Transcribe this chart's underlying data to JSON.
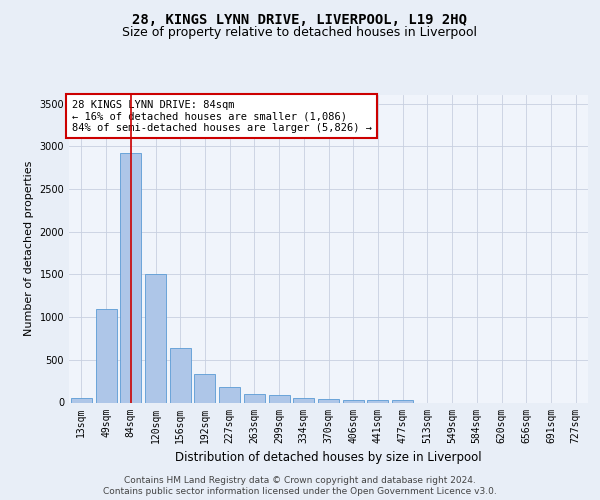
{
  "title": "28, KINGS LYNN DRIVE, LIVERPOOL, L19 2HQ",
  "subtitle": "Size of property relative to detached houses in Liverpool",
  "xlabel": "Distribution of detached houses by size in Liverpool",
  "ylabel": "Number of detached properties",
  "categories": [
    "13sqm",
    "49sqm",
    "84sqm",
    "120sqm",
    "156sqm",
    "192sqm",
    "227sqm",
    "263sqm",
    "299sqm",
    "334sqm",
    "370sqm",
    "406sqm",
    "441sqm",
    "477sqm",
    "513sqm",
    "549sqm",
    "584sqm",
    "620sqm",
    "656sqm",
    "691sqm",
    "727sqm"
  ],
  "values": [
    55,
    1100,
    2920,
    1510,
    640,
    330,
    185,
    95,
    90,
    55,
    40,
    30,
    30,
    25,
    0,
    0,
    0,
    0,
    0,
    0,
    0
  ],
  "bar_color": "#aec6e8",
  "bar_edge_color": "#5b9bd5",
  "highlight_bar_index": 2,
  "highlight_line_color": "#cc0000",
  "ylim": [
    0,
    3600
  ],
  "yticks": [
    0,
    500,
    1000,
    1500,
    2000,
    2500,
    3000,
    3500
  ],
  "annotation_text": "28 KINGS LYNN DRIVE: 84sqm\n← 16% of detached houses are smaller (1,086)\n84% of semi-detached houses are larger (5,826) →",
  "annotation_box_color": "#ffffff",
  "annotation_box_edge_color": "#cc0000",
  "background_color": "#e8eef7",
  "plot_background_color": "#f0f4fb",
  "footer_line1": "Contains HM Land Registry data © Crown copyright and database right 2024.",
  "footer_line2": "Contains public sector information licensed under the Open Government Licence v3.0.",
  "title_fontsize": 10,
  "subtitle_fontsize": 9,
  "xlabel_fontsize": 8.5,
  "ylabel_fontsize": 8,
  "tick_fontsize": 7,
  "annotation_fontsize": 7.5,
  "footer_fontsize": 6.5
}
